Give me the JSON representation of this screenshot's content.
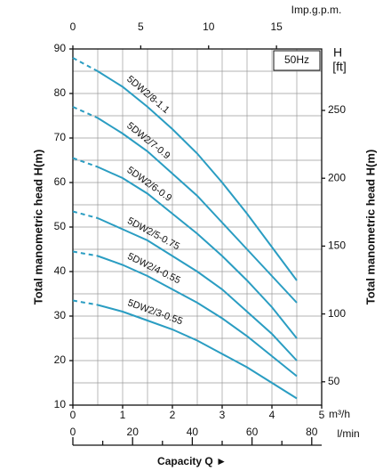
{
  "chart_data": {
    "type": "line",
    "x_label": "Capacity Q  ►",
    "y_label": "Total manometric head H(m)",
    "y2_label": "Total manometric head H(m)",
    "y2_symbol": "H",
    "y2_unit": "[ft]",
    "x_unit": "m³/h",
    "x2_unit": "Imp.g.p.m.",
    "x3_unit": "l/min",
    "annotation": "50Hz",
    "x": [
      0,
      0.5,
      1,
      1.5,
      2,
      2.5,
      3,
      3.5,
      4,
      4.5
    ],
    "xlim": [
      0,
      5
    ],
    "xticks": [
      0,
      1,
      2,
      3,
      4,
      5
    ],
    "x_gridlines": [
      0.5,
      1,
      1.5,
      2,
      2.5,
      3,
      3.5,
      4,
      4.5
    ],
    "x2lim": [
      0,
      18.33
    ],
    "x2ticks": [
      0,
      5,
      10,
      15
    ],
    "x3lim": [
      0,
      83.33
    ],
    "x3ticks": [
      0,
      20,
      40,
      60,
      80
    ],
    "x3minorticks": [
      10,
      30,
      50,
      70
    ],
    "ylim": [
      10,
      90
    ],
    "yticks": [
      10,
      20,
      30,
      40,
      50,
      60,
      70,
      80,
      90
    ],
    "y_gridlines": [
      15,
      20,
      25,
      30,
      35,
      40,
      45,
      50,
      55,
      60,
      65,
      70,
      75,
      80,
      85
    ],
    "y2lim": [
      32.81,
      295.28
    ],
    "y2ticks": [
      50,
      100,
      150,
      200,
      250
    ],
    "dashed_below": 0.5,
    "grid": true,
    "series": [
      {
        "name": "5DW2/8-1.1",
        "color": "#2a9dc2",
        "values": [
          88,
          85,
          81.5,
          77,
          72,
          66.5,
          60,
          53,
          45.5,
          38
        ]
      },
      {
        "name": "5DW2/7-0.9",
        "color": "#2a9dc2",
        "values": [
          77,
          74.5,
          71,
          67,
          62,
          57,
          51,
          45,
          39,
          33
        ]
      },
      {
        "name": "5DW2/6-0.9",
        "color": "#2a9dc2",
        "values": [
          65.5,
          63.5,
          61,
          57.5,
          53,
          48.5,
          43.5,
          38,
          32,
          25
        ]
      },
      {
        "name": "5DW2/5-0.75",
        "color": "#2a9dc2",
        "values": [
          53.5,
          52,
          49.5,
          47,
          43.5,
          40,
          36,
          31,
          26,
          20
        ]
      },
      {
        "name": "5DW2/4-0.55",
        "color": "#2a9dc2",
        "values": [
          44.5,
          43.5,
          41.5,
          39,
          36,
          33,
          29.5,
          25.5,
          21,
          16.5
        ]
      },
      {
        "name": "5DW2/3-0.55",
        "color": "#2a9dc2",
        "values": [
          33.5,
          32.5,
          31,
          29,
          27,
          24.5,
          21.5,
          18.5,
          15,
          11.5
        ]
      }
    ]
  }
}
